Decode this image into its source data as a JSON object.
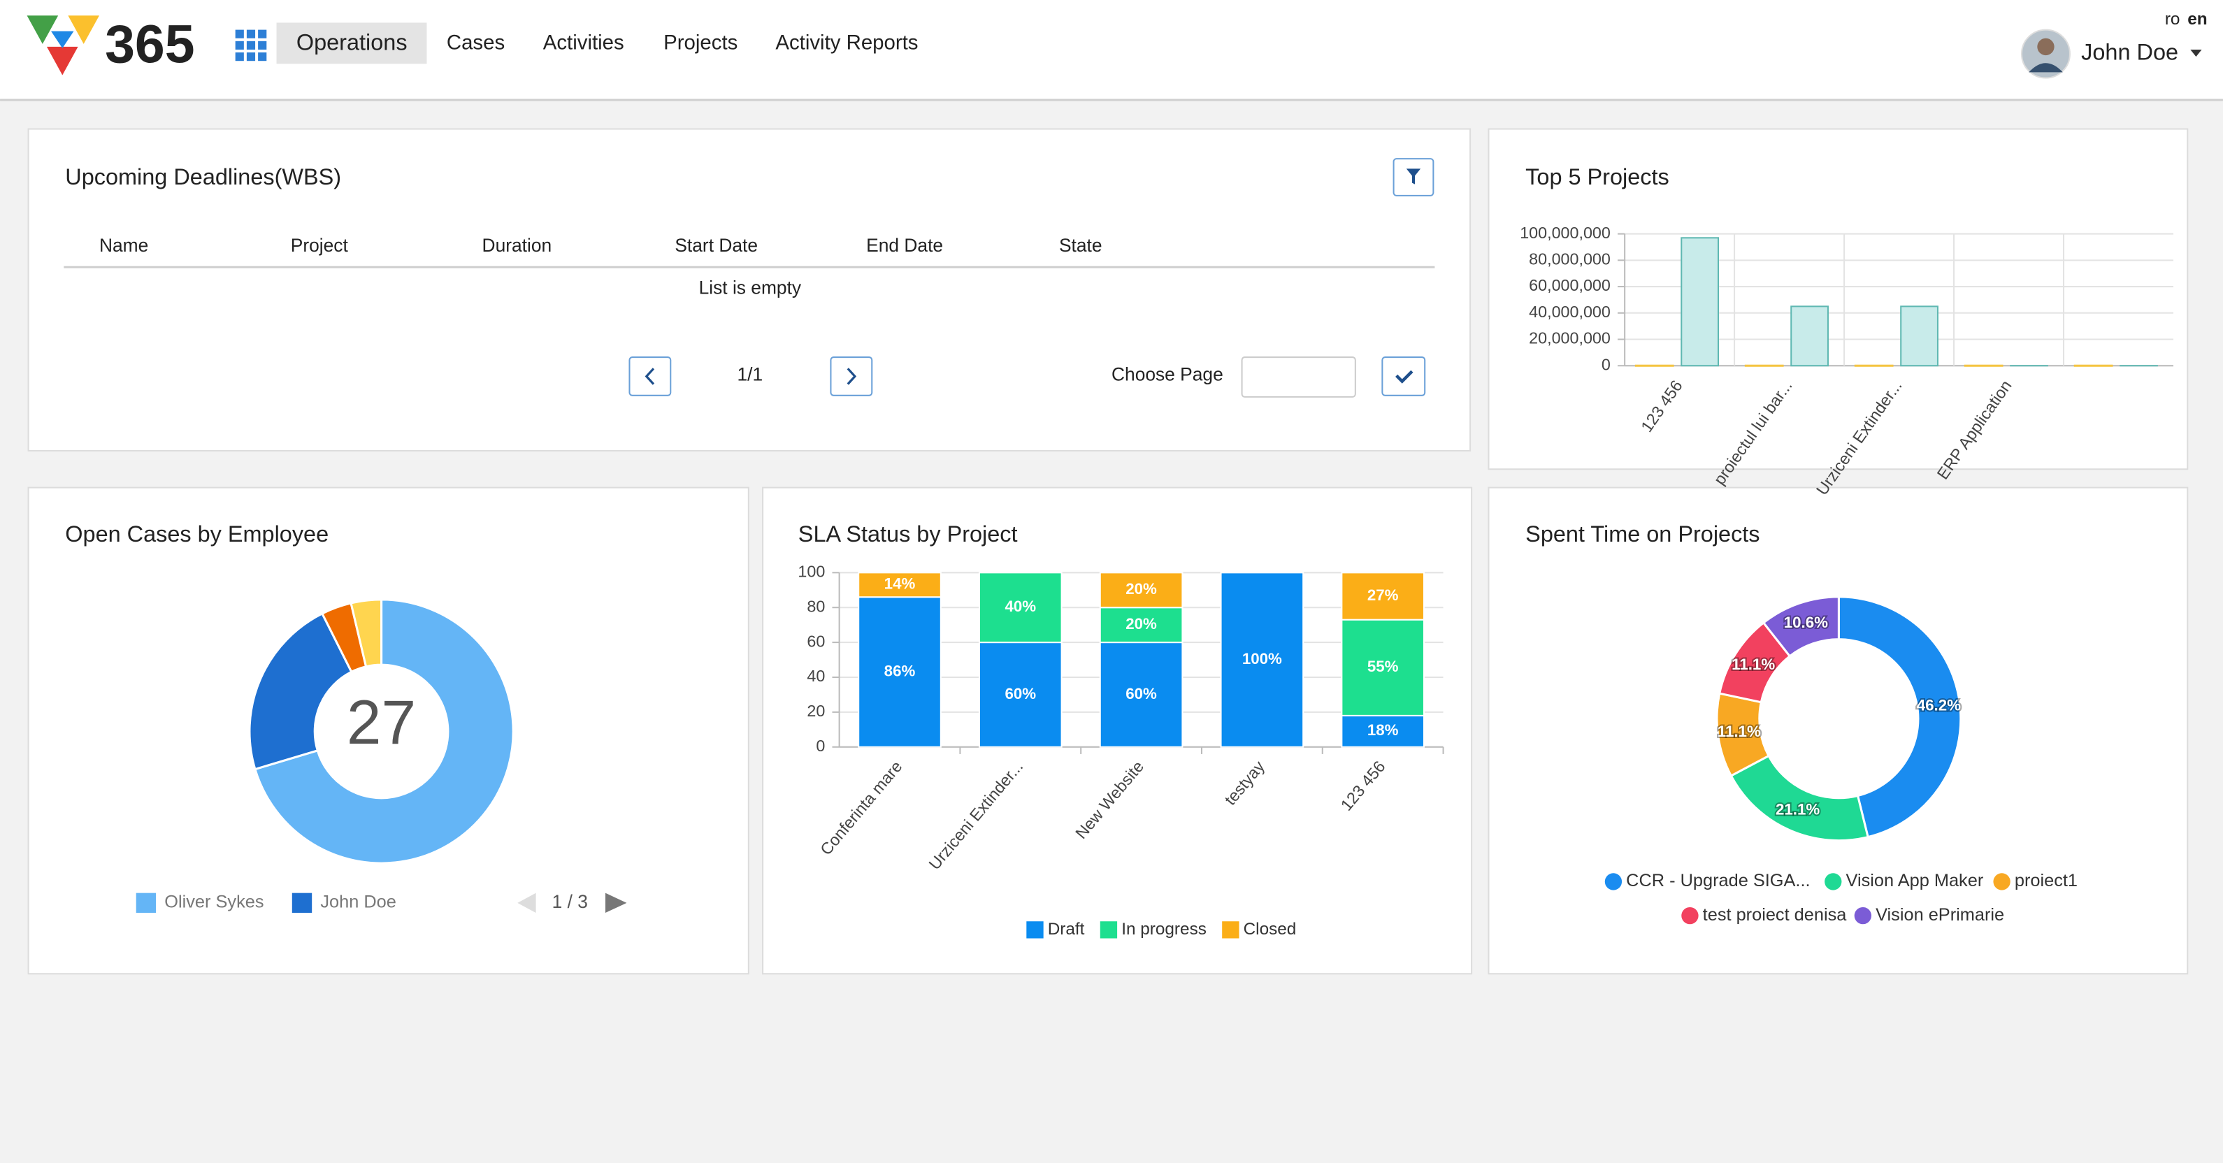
{
  "nav": {
    "logo": "365",
    "items": [
      "Operations",
      "Cases",
      "Activities",
      "Projects",
      "Activity Reports"
    ]
  },
  "languages": [
    "ro",
    "en"
  ],
  "user": "John Doe",
  "deadlines": {
    "title": "Upcoming Deadlines(WBS)",
    "columns": [
      "Name",
      "Project",
      "Duration",
      "Start Date",
      "End Date",
      "State"
    ],
    "empty": "List is empty",
    "page": "1/1",
    "choose_page": "Choose Page"
  },
  "chart_data": [
    {
      "type": "bar",
      "title": "Top 5 Projects",
      "categories": [
        "123 456",
        "proiectul lui bar...",
        "Urziceni Extinder...",
        "ERP Application",
        null
      ],
      "series": [
        {
          "color": "#f5c542",
          "values": [
            0,
            0,
            0,
            0,
            0
          ]
        },
        {
          "color": "#c8ebea",
          "values": [
            97000000,
            45000000,
            45000000,
            0,
            0
          ]
        }
      ],
      "ylim": [
        0,
        100000000
      ],
      "yticks": [
        0,
        {
          "value": 20000000,
          "label": "20,000,000"
        },
        {
          "value": 40000000,
          "label": "40,000,000"
        },
        {
          "value": 60000000,
          "label": "60,000,000"
        },
        {
          "value": 80000000,
          "label": "80,000,000"
        },
        {
          "value": 100000000,
          "label": "100,000,000"
        }
      ],
      "grid": true
    },
    {
      "type": "donut",
      "title": "Open Cases by Employee",
      "total": 27,
      "categories": [
        "Oliver Sykes",
        "John Doe",
        null,
        null
      ],
      "values": [
        19,
        6,
        1,
        1
      ],
      "colors": [
        "#64b5f6",
        "#1e6fd0",
        "#ef6c00",
        "#ffd54f"
      ],
      "legend_page": "1 / 3"
    },
    {
      "type": "stacked_bar",
      "title": "SLA Status by Project",
      "categories": [
        "Conferinta mare",
        "Urziceni Extinder...",
        "New Website",
        "testyay",
        "123 456"
      ],
      "series": [
        {
          "name": "Draft",
          "color": "#0a8cf0",
          "values": [
            86,
            60,
            60,
            100,
            18
          ],
          "value_labels": [
            "86%",
            "60%",
            "60%",
            "100%",
            "18%"
          ]
        },
        {
          "name": "In progress",
          "color": "#1ddf8f",
          "values": [
            0,
            40,
            20,
            0,
            55
          ],
          "value_labels": [
            null,
            "40%",
            "20%",
            null,
            "55%"
          ]
        },
        {
          "name": "Closed",
          "color": "#fbae17",
          "values": [
            14,
            0,
            20,
            0,
            27
          ],
          "value_labels": [
            "14%",
            null,
            "20%",
            null,
            "27%"
          ]
        }
      ],
      "ylim": [
        0,
        100
      ],
      "yticks": [
        0,
        20,
        40,
        60,
        80,
        100
      ],
      "grid": true
    },
    {
      "type": "donut",
      "title": "Spent Time on Projects",
      "categories": [
        "CCR - Upgrade SIGA...",
        "Vision App Maker",
        "proiect1",
        "test proiect denisa",
        "Vision ePrimarie"
      ],
      "values": [
        46.2,
        21.1,
        11.1,
        11.1,
        10.6
      ],
      "value_labels": [
        "46.2%",
        "21.1%",
        "11.1%",
        "11.1%",
        "10.6%"
      ],
      "colors": [
        "#1a8cf0",
        "#1fd994",
        "#f8a823",
        "#f2415f",
        "#7b5cd6"
      ]
    }
  ]
}
